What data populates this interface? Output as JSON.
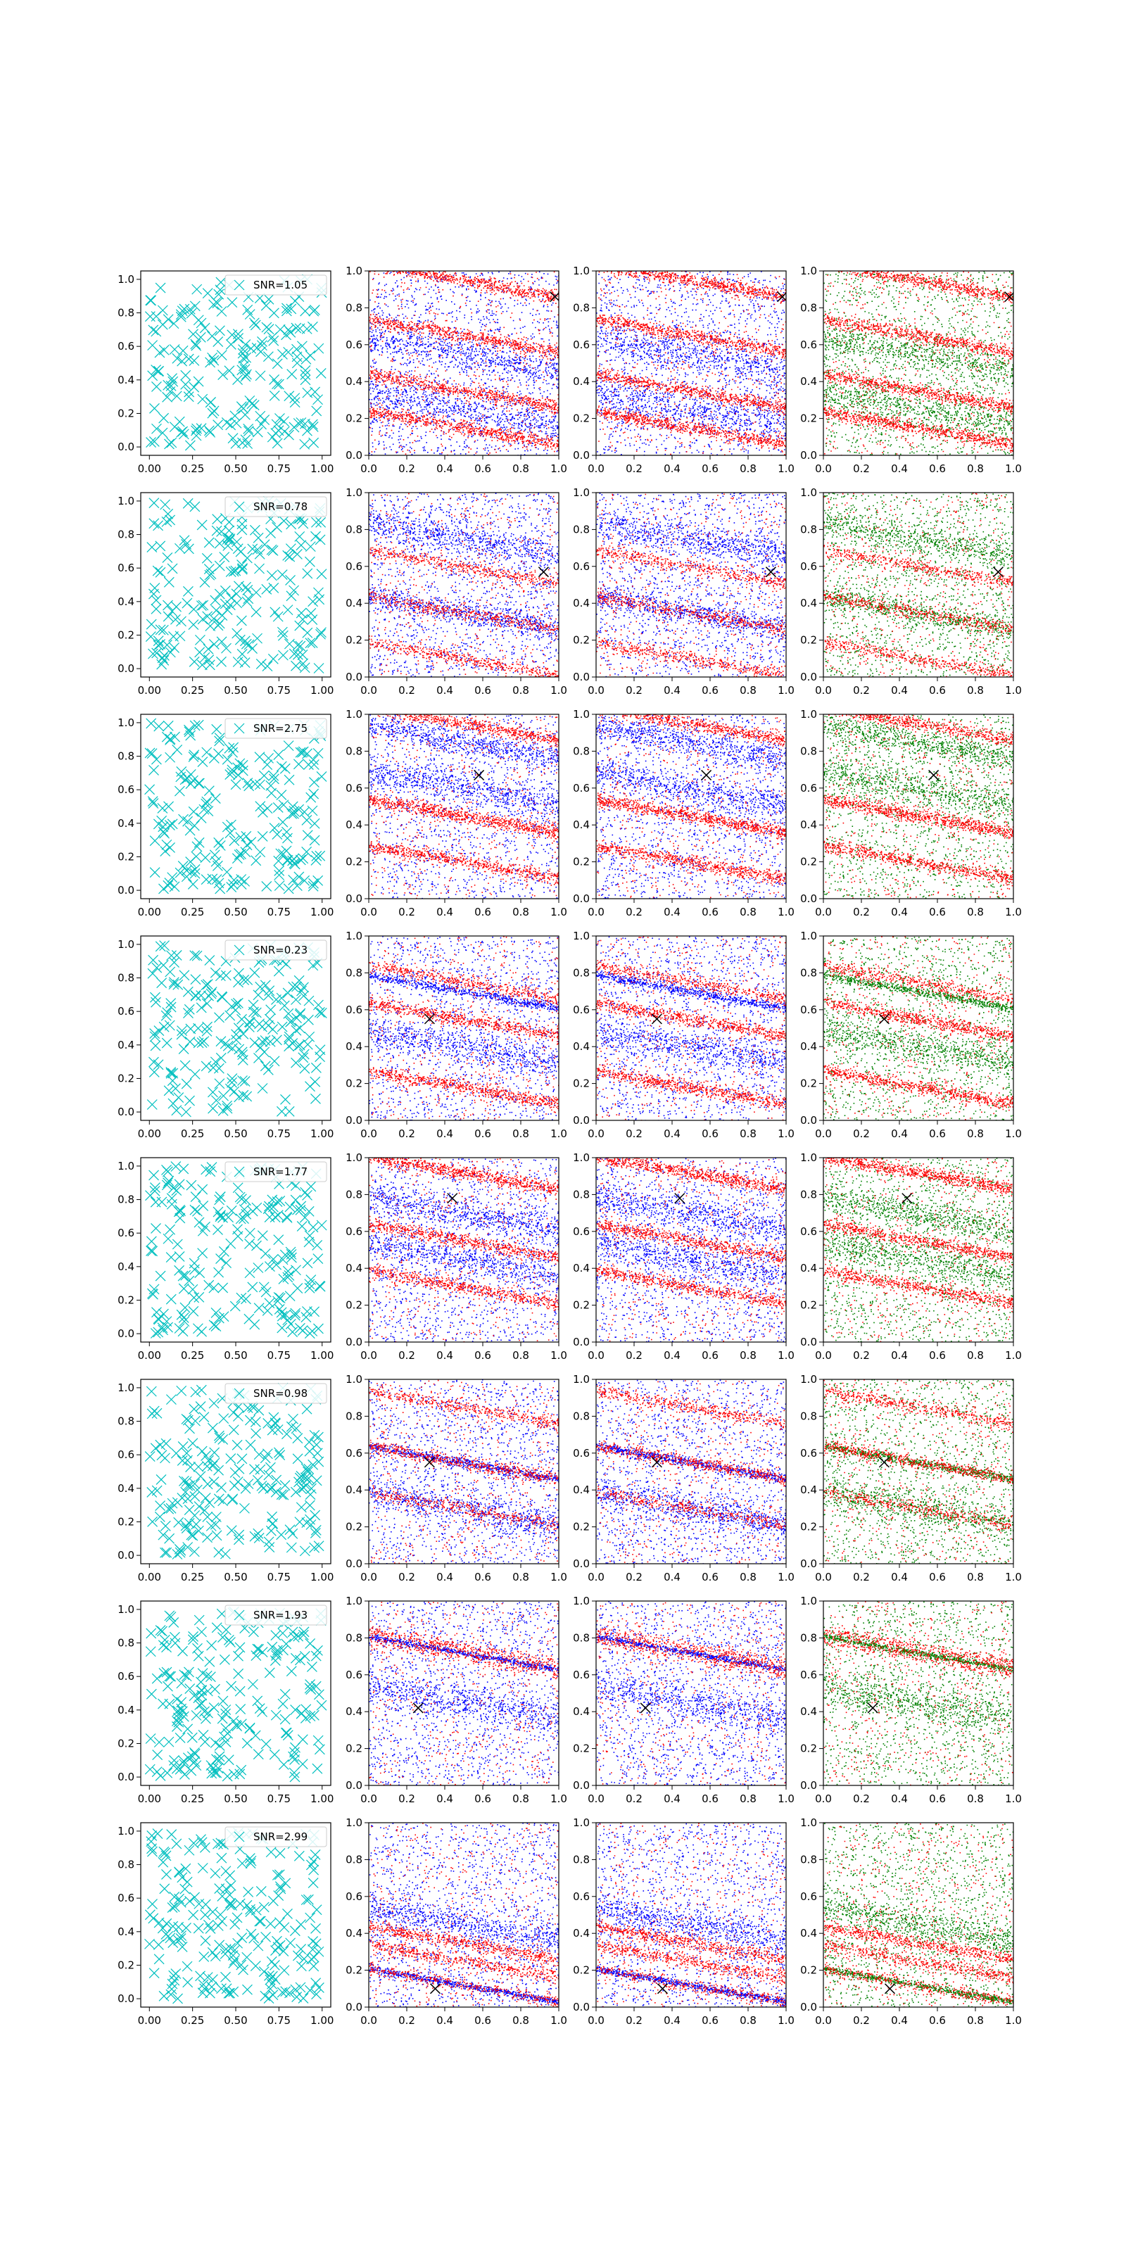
{
  "figure": {
    "rows": 8,
    "cols": 4
  },
  "colors": {
    "cyan": "#00BFBF",
    "red": "#FF0000",
    "blue": "#0000FF",
    "green": "#008000",
    "marker": "#000000"
  },
  "ticks": {
    "col0": [
      "0.00",
      "0.25",
      "0.50",
      "0.75",
      "1.00"
    ],
    "col0_values": [
      0,
      0.25,
      0.5,
      0.75,
      1.0
    ],
    "y0": [
      "0.0",
      "0.2",
      "0.4",
      "0.6",
      "0.8",
      "1.0"
    ],
    "y0_values": [
      0,
      0.2,
      0.4,
      0.6,
      0.8,
      1.0
    ],
    "other": [
      "0.0",
      "0.2",
      "0.4",
      "0.6",
      "0.8",
      "1.0"
    ],
    "other_values": [
      0,
      0.2,
      0.4,
      0.6,
      0.8,
      1.0
    ]
  },
  "chart_data": [
    {
      "type": "scatter",
      "row": 1,
      "legend": "SNR=1.05",
      "marker": [
        0.98,
        0.86
      ],
      "xlim": [
        -0.05,
        1.05
      ],
      "ylim": [
        -0.05,
        1.05
      ],
      "panels": [
        "cyan x-markers",
        "red+blue points",
        "red+blue points",
        "red+green points"
      ],
      "red_bands": [
        [
          0.0,
          0.95,
          0.5
        ],
        [
          0.0,
          0.65,
          0.45
        ],
        [
          0.0,
          0.35,
          0.45
        ],
        [
          0.0,
          0.15,
          0.5
        ]
      ],
      "blue_bands": [
        [
          0.0,
          0.55,
          0.5
        ],
        [
          0.0,
          0.25,
          0.6
        ]
      ]
    },
    {
      "type": "scatter",
      "row": 2,
      "legend": "SNR=0.78",
      "marker": [
        0.92,
        0.57
      ],
      "xlim": [
        -0.05,
        1.05
      ],
      "ylim": [
        -0.05,
        1.05
      ],
      "red_bands": [
        [
          0.0,
          0.35,
          0.2
        ],
        [
          0.0,
          0.1,
          0.2
        ],
        [
          0.0,
          0.6,
          0.2
        ]
      ],
      "blue_bands": [
        [
          0.0,
          0.75,
          0.5
        ],
        [
          0.0,
          0.35,
          0.4
        ]
      ]
    },
    {
      "type": "scatter",
      "row": 3,
      "legend": "SNR=2.75",
      "marker": [
        0.58,
        0.67
      ],
      "xlim": [
        -0.05,
        1.05
      ],
      "ylim": [
        -0.05,
        1.05
      ],
      "red_bands": [
        [
          0.0,
          0.95,
          0.45
        ],
        [
          0.0,
          0.45,
          0.6
        ],
        [
          0.0,
          0.2,
          0.4
        ]
      ],
      "blue_bands": [
        [
          0.0,
          0.6,
          0.5
        ],
        [
          0.0,
          0.85,
          0.4
        ]
      ]
    },
    {
      "type": "scatter",
      "row": 4,
      "legend": "SNR=0.23",
      "marker": [
        0.32,
        0.55
      ],
      "xlim": [
        -0.05,
        1.05
      ],
      "ylim": [
        -0.05,
        1.05
      ],
      "red_bands": [
        [
          0.0,
          0.75,
          0.2
        ],
        [
          0.0,
          0.18,
          0.45
        ],
        [
          0.0,
          0.55,
          0.4
        ]
      ],
      "blue_bands": [
        [
          0.0,
          0.7,
          0.15
        ],
        [
          0.0,
          0.4,
          0.5
        ]
      ]
    },
    {
      "type": "scatter",
      "row": 5,
      "legend": "SNR=1.77",
      "marker": [
        0.44,
        0.78
      ],
      "xlim": [
        -0.05,
        1.05
      ],
      "ylim": [
        -0.05,
        1.05
      ],
      "red_bands": [
        [
          0.0,
          0.92,
          0.55
        ],
        [
          0.0,
          0.55,
          0.4
        ],
        [
          0.0,
          0.3,
          0.35
        ]
      ],
      "blue_bands": [
        [
          0.0,
          0.7,
          0.5
        ],
        [
          0.0,
          0.45,
          0.5
        ]
      ]
    },
    {
      "type": "scatter",
      "row": 6,
      "legend": "SNR=0.98",
      "marker": [
        0.32,
        0.55
      ],
      "xlim": [
        -0.05,
        1.05
      ],
      "ylim": [
        -0.05,
        1.05
      ],
      "red_bands": [
        [
          0.0,
          0.85,
          0.2
        ],
        [
          0.0,
          0.55,
          0.3
        ],
        [
          0.0,
          0.3,
          0.1
        ]
      ],
      "blue_bands": [
        [
          0.0,
          0.55,
          0.15
        ],
        [
          0.0,
          0.3,
          0.5
        ]
      ]
    },
    {
      "type": "scatter",
      "row": 7,
      "legend": "SNR=1.93",
      "marker": [
        0.26,
        0.42
      ],
      "xlim": [
        -0.05,
        1.05
      ],
      "ylim": [
        -0.05,
        1.05
      ],
      "red_bands": [
        [
          0.0,
          0.75,
          0.1
        ],
        [
          0.0,
          0.7,
          0.08
        ]
      ],
      "blue_bands": [
        [
          0.0,
          0.72,
          0.1
        ],
        [
          0.0,
          0.45,
          0.6
        ]
      ]
    },
    {
      "type": "scatter",
      "row": 8,
      "legend": "SNR=2.99",
      "marker": [
        0.35,
        0.1
      ],
      "xlim": [
        -0.05,
        1.05
      ],
      "ylim": [
        -0.05,
        1.05
      ],
      "red_bands": [
        [
          0.0,
          0.25,
          0.25
        ],
        [
          0.0,
          0.12,
          0.1
        ],
        [
          0.0,
          0.35,
          0.35
        ]
      ],
      "blue_bands": [
        [
          0.0,
          0.12,
          0.1
        ],
        [
          0.0,
          0.45,
          0.5
        ]
      ]
    }
  ]
}
